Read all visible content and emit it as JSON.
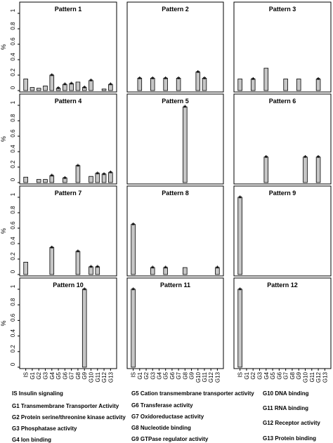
{
  "chart_data": {
    "type": "bar",
    "ylabel": "%",
    "categories": [
      "IS",
      "G1",
      "G2",
      "G3",
      "G4",
      "G5",
      "G6",
      "G7",
      "G8",
      "G9",
      "G10",
      "G11",
      "G12",
      "G13"
    ],
    "ylim": [
      0,
      1
    ],
    "bar_color": "#c6c6c6",
    "panels": [
      {
        "title": "Pattern 1",
        "values": [
          0.15,
          0.04,
          0.03,
          0.06,
          0.2,
          0.03,
          0.08,
          0.09,
          0.11,
          0.04,
          0.13,
          null,
          0.02,
          0.08
        ],
        "stars": [
          false,
          false,
          false,
          false,
          true,
          true,
          true,
          true,
          false,
          true,
          true,
          false,
          false,
          true
        ]
      },
      {
        "title": "Pattern 2",
        "values": [
          null,
          0.16,
          null,
          0.16,
          null,
          0.16,
          null,
          0.16,
          null,
          null,
          0.24,
          0.16,
          null,
          null
        ],
        "stars": [
          false,
          true,
          false,
          true,
          false,
          true,
          false,
          true,
          false,
          false,
          true,
          true,
          false,
          false
        ]
      },
      {
        "title": "Pattern 3",
        "values": [
          0.15,
          null,
          0.15,
          null,
          0.29,
          null,
          null,
          0.15,
          null,
          0.15,
          null,
          null,
          0.15,
          null
        ],
        "stars": [
          false,
          false,
          true,
          false,
          false,
          false,
          false,
          false,
          false,
          false,
          false,
          false,
          true,
          false
        ]
      },
      {
        "title": "Pattern 4",
        "values": [
          0.07,
          null,
          0.04,
          0.04,
          0.09,
          null,
          0.06,
          null,
          0.22,
          null,
          0.08,
          0.12,
          0.11,
          0.13
        ],
        "stars": [
          false,
          false,
          false,
          false,
          true,
          false,
          true,
          false,
          true,
          false,
          false,
          true,
          true,
          true
        ]
      },
      {
        "title": "Pattern 5",
        "values": [
          null,
          null,
          null,
          null,
          null,
          null,
          null,
          null,
          0.98,
          null,
          null,
          null,
          null,
          null
        ],
        "stars": [
          false,
          false,
          false,
          false,
          false,
          false,
          false,
          false,
          true,
          false,
          false,
          false,
          false,
          false
        ]
      },
      {
        "title": "Pattern 6",
        "values": [
          null,
          null,
          null,
          null,
          0.33,
          null,
          null,
          null,
          null,
          null,
          0.33,
          null,
          0.33,
          null
        ],
        "stars": [
          false,
          false,
          false,
          false,
          true,
          false,
          false,
          false,
          false,
          false,
          true,
          false,
          true,
          false
        ]
      },
      {
        "title": "Pattern 7",
        "values": [
          0.16,
          null,
          null,
          null,
          0.35,
          null,
          null,
          null,
          0.3,
          null,
          0.1,
          0.1,
          null,
          null
        ],
        "stars": [
          false,
          false,
          false,
          false,
          true,
          false,
          false,
          false,
          true,
          false,
          true,
          true,
          false,
          false
        ]
      },
      {
        "title": "Pattern 8",
        "values": [
          0.65,
          null,
          null,
          0.09,
          null,
          0.09,
          null,
          null,
          0.09,
          null,
          null,
          null,
          null,
          0.09
        ],
        "stars": [
          true,
          false,
          false,
          true,
          false,
          true,
          false,
          false,
          false,
          false,
          false,
          false,
          false,
          true
        ]
      },
      {
        "title": "Pattern 9",
        "values": [
          1.0,
          null,
          null,
          null,
          null,
          null,
          null,
          null,
          null,
          null,
          null,
          null,
          null,
          null
        ],
        "stars": [
          true,
          false,
          false,
          false,
          false,
          false,
          false,
          false,
          false,
          false,
          false,
          false,
          false,
          false
        ]
      },
      {
        "title": "Pattern 10",
        "values": [
          null,
          null,
          null,
          null,
          null,
          null,
          null,
          null,
          null,
          1.0,
          null,
          null,
          null,
          null
        ],
        "stars": [
          false,
          false,
          false,
          false,
          false,
          false,
          false,
          false,
          false,
          true,
          false,
          false,
          false,
          false
        ]
      },
      {
        "title": "Pattern 11",
        "values": [
          1.0,
          null,
          null,
          null,
          null,
          null,
          null,
          null,
          null,
          null,
          null,
          null,
          null,
          null
        ],
        "stars": [
          true,
          false,
          false,
          false,
          false,
          false,
          false,
          false,
          false,
          false,
          false,
          false,
          false,
          false
        ]
      },
      {
        "title": "Pattern 12",
        "values": [
          1.0,
          null,
          null,
          null,
          null,
          null,
          null,
          null,
          null,
          null,
          null,
          null,
          null,
          null
        ],
        "stars": [
          true,
          false,
          false,
          false,
          false,
          false,
          false,
          false,
          false,
          false,
          false,
          false,
          false,
          false
        ]
      }
    ]
  },
  "legend": {
    "is": "IS Insulin signaling",
    "g1": "G1 Transmembrane Transporter Activity",
    "g2": "G2 Protein serine/threonine kinase activity",
    "g3": "G3 Phosphatase activity",
    "g4": "G4 Ion binding",
    "g5": "G5 Cation transmembrane transporter activity",
    "g6": "G6 Transferase activity",
    "g7": "G7 Oxidoreductase activity",
    "g8": "G8 Nucleotide binding",
    "g9": "G9 GTPase regulator activity",
    "g10": "G10 DNA binding",
    "g11": "G11 RNA binding",
    "g12": "G12 Receptor activity",
    "g13": "G13 Protein binding"
  }
}
